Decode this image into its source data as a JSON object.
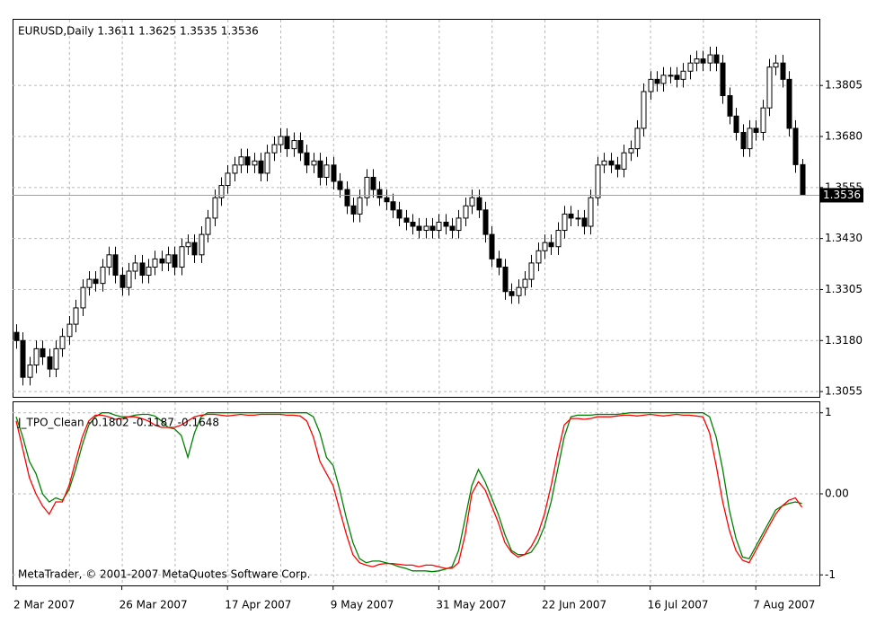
{
  "chart_data": [
    {
      "type": "candlestick",
      "title": "EURUSD,Daily  1.3611 1.3625 1.3535 1.3536",
      "categories": [
        "2 Mar 2007",
        null,
        null,
        null,
        null,
        null,
        null,
        null,
        null,
        null,
        null,
        null,
        null,
        null,
        null,
        null,
        "26 Mar 2007",
        null,
        null,
        null,
        null,
        null,
        null,
        null,
        null,
        null,
        null,
        null,
        null,
        null,
        null,
        null,
        "17 Apr 2007",
        null,
        null,
        null,
        null,
        null,
        null,
        null,
        null,
        null,
        null,
        null,
        null,
        null,
        null,
        null,
        "9 May 2007",
        null,
        null,
        null,
        null,
        null,
        null,
        null,
        null,
        null,
        null,
        null,
        null,
        null,
        null,
        null,
        "31 May 2007",
        null,
        null,
        null,
        null,
        null,
        null,
        null,
        null,
        null,
        null,
        null,
        null,
        null,
        null,
        null,
        "22 Jun 2007",
        null,
        null,
        null,
        null,
        null,
        null,
        null,
        null,
        null,
        null,
        null,
        null,
        null,
        null,
        null,
        "16 Jul 2007",
        null,
        null,
        null,
        null,
        null,
        null,
        null,
        null,
        null,
        null,
        null,
        null,
        null,
        null,
        null,
        "7 Aug 2007",
        null,
        null,
        null,
        null,
        null,
        null,
        null
      ],
      "open": [
        1.32,
        1.318,
        1.309,
        1.312,
        1.316,
        1.314,
        1.311,
        1.316,
        1.319,
        1.322,
        1.326,
        1.331,
        1.333,
        1.332,
        1.336,
        1.339,
        1.334,
        1.331,
        1.335,
        1.337,
        1.334,
        1.336,
        1.338,
        1.337,
        1.339,
        1.336,
        1.341,
        1.342,
        1.339,
        1.344,
        1.348,
        1.353,
        1.356,
        1.359,
        1.361,
        1.363,
        1.361,
        1.362,
        1.359,
        1.364,
        1.366,
        1.368,
        1.365,
        1.367,
        1.364,
        1.361,
        1.362,
        1.358,
        1.361,
        1.357,
        1.355,
        1.351,
        1.349,
        1.353,
        1.358,
        1.355,
        1.353,
        1.352,
        1.35,
        1.348,
        1.347,
        1.346,
        1.345,
        1.346,
        1.345,
        1.347,
        1.346,
        1.345,
        1.348,
        1.351,
        1.353,
        1.35,
        1.344,
        1.338,
        1.336,
        1.33,
        1.329,
        1.331,
        1.333,
        1.337,
        1.34,
        1.342,
        1.341,
        1.345,
        1.349,
        1.348,
        1.348,
        1.346,
        1.353,
        1.361,
        1.362,
        1.361,
        1.36,
        1.364,
        1.365,
        1.37,
        1.379,
        1.382,
        1.381,
        1.383,
        1.383,
        1.382,
        1.384,
        1.386,
        1.387,
        1.386,
        1.388,
        1.386,
        1.378,
        1.373,
        1.369,
        1.365,
        1.37,
        1.369,
        1.375,
        1.385,
        1.386,
        1.382,
        1.37,
        1.3611
      ],
      "high": [
        1.322,
        1.32,
        1.314,
        1.318,
        1.318,
        1.316,
        1.318,
        1.321,
        1.324,
        1.328,
        1.333,
        1.335,
        1.335,
        1.338,
        1.341,
        1.341,
        1.336,
        1.337,
        1.339,
        1.339,
        1.338,
        1.34,
        1.34,
        1.341,
        1.341,
        1.343,
        1.344,
        1.344,
        1.346,
        1.35,
        1.355,
        1.358,
        1.361,
        1.363,
        1.365,
        1.365,
        1.364,
        1.364,
        1.366,
        1.368,
        1.37,
        1.37,
        1.369,
        1.369,
        1.366,
        1.364,
        1.364,
        1.363,
        1.363,
        1.359,
        1.357,
        1.353,
        1.355,
        1.36,
        1.36,
        1.357,
        1.355,
        1.354,
        1.352,
        1.35,
        1.349,
        1.348,
        1.348,
        1.348,
        1.349,
        1.349,
        1.348,
        1.35,
        1.353,
        1.355,
        1.355,
        1.352,
        1.346,
        1.34,
        1.338,
        1.332,
        1.333,
        1.335,
        1.339,
        1.342,
        1.344,
        1.344,
        1.347,
        1.351,
        1.351,
        1.35,
        1.35,
        1.355,
        1.363,
        1.364,
        1.364,
        1.363,
        1.366,
        1.367,
        1.372,
        1.381,
        1.384,
        1.384,
        1.385,
        1.385,
        1.385,
        1.386,
        1.388,
        1.389,
        1.389,
        1.39,
        1.39,
        1.388,
        1.38,
        1.375,
        1.371,
        1.372,
        1.372,
        1.377,
        1.387,
        1.388,
        1.388,
        1.384,
        1.372,
        1.3625
      ],
      "low": [
        1.316,
        1.307,
        1.307,
        1.31,
        1.312,
        1.309,
        1.309,
        1.314,
        1.317,
        1.32,
        1.324,
        1.329,
        1.33,
        1.33,
        1.334,
        1.332,
        1.329,
        1.329,
        1.333,
        1.332,
        1.332,
        1.334,
        1.335,
        1.335,
        1.334,
        1.334,
        1.339,
        1.337,
        1.337,
        1.342,
        1.346,
        1.351,
        1.354,
        1.357,
        1.359,
        1.359,
        1.359,
        1.357,
        1.357,
        1.362,
        1.364,
        1.363,
        1.363,
        1.362,
        1.359,
        1.359,
        1.356,
        1.356,
        1.355,
        1.353,
        1.349,
        1.347,
        1.347,
        1.351,
        1.353,
        1.351,
        1.35,
        1.348,
        1.346,
        1.345,
        1.344,
        1.343,
        1.343,
        1.343,
        1.343,
        1.344,
        1.343,
        1.343,
        1.346,
        1.349,
        1.348,
        1.342,
        1.336,
        1.334,
        1.328,
        1.327,
        1.327,
        1.329,
        1.331,
        1.335,
        1.338,
        1.339,
        1.339,
        1.343,
        1.346,
        1.346,
        1.344,
        1.344,
        1.351,
        1.359,
        1.359,
        1.358,
        1.358,
        1.362,
        1.363,
        1.368,
        1.377,
        1.379,
        1.379,
        1.381,
        1.38,
        1.38,
        1.382,
        1.384,
        1.384,
        1.384,
        1.384,
        1.376,
        1.371,
        1.367,
        1.363,
        1.363,
        1.367,
        1.367,
        1.373,
        1.383,
        1.38,
        1.368,
        1.3591,
        1.3535
      ],
      "close": [
        1.318,
        1.309,
        1.312,
        1.316,
        1.314,
        1.311,
        1.316,
        1.319,
        1.322,
        1.326,
        1.331,
        1.333,
        1.332,
        1.336,
        1.339,
        1.334,
        1.331,
        1.335,
        1.337,
        1.334,
        1.336,
        1.338,
        1.337,
        1.339,
        1.336,
        1.341,
        1.342,
        1.339,
        1.344,
        1.348,
        1.353,
        1.356,
        1.359,
        1.361,
        1.363,
        1.361,
        1.362,
        1.359,
        1.364,
        1.366,
        1.368,
        1.365,
        1.367,
        1.364,
        1.361,
        1.362,
        1.358,
        1.361,
        1.357,
        1.355,
        1.351,
        1.349,
        1.353,
        1.358,
        1.355,
        1.353,
        1.352,
        1.35,
        1.348,
        1.347,
        1.346,
        1.345,
        1.346,
        1.345,
        1.347,
        1.346,
        1.345,
        1.348,
        1.351,
        1.353,
        1.35,
        1.344,
        1.338,
        1.336,
        1.33,
        1.329,
        1.331,
        1.333,
        1.337,
        1.34,
        1.342,
        1.341,
        1.345,
        1.349,
        1.348,
        1.348,
        1.346,
        1.353,
        1.361,
        1.362,
        1.361,
        1.36,
        1.364,
        1.365,
        1.37,
        1.379,
        1.382,
        1.381,
        1.383,
        1.383,
        1.382,
        1.384,
        1.386,
        1.387,
        1.386,
        1.388,
        1.386,
        1.378,
        1.373,
        1.369,
        1.365,
        1.37,
        1.369,
        1.375,
        1.385,
        1.386,
        1.382,
        1.37,
        1.3611,
        1.3536
      ],
      "up_color": "#ffffff",
      "down_color": "#000000",
      "ylim": [
        1.3042,
        1.3966
      ],
      "yticks": [
        1.3055,
        {
          "value": 1.318,
          "label": "1.3180"
        },
        1.3305,
        {
          "value": 1.343,
          "label": "1.3430"
        },
        1.3555,
        {
          "value": 1.368,
          "label": "1.3680"
        },
        1.3805
      ],
      "grid": true
    },
    {
      "type": "line",
      "title": "J_TPO_Clean -0.1802 -0.1187 -0.1648",
      "annotation": "MetaTrader, © 2001-2007 MetaQuotes Software Corp.",
      "series": [
        {
          "color": "#008000",
          "values": [
            0.95,
            0.7,
            0.4,
            0.25,
            0.0,
            -0.1,
            -0.05,
            -0.08,
            0.05,
            0.3,
            0.6,
            0.85,
            0.95,
            1.0,
            1.0,
            0.97,
            0.95,
            0.95,
            0.97,
            0.98,
            0.98,
            0.96,
            0.9,
            0.82,
            0.8,
            0.72,
            0.45,
            0.75,
            0.95,
            1.0,
            1,
            1,
            1,
            1,
            1,
            1,
            1,
            1,
            1,
            1,
            1,
            1,
            1,
            1,
            1.0,
            0.95,
            0.75,
            0.45,
            0.35,
            0.05,
            -0.3,
            -0.6,
            -0.8,
            -0.85,
            -0.83,
            -0.83,
            -0.85,
            -0.87,
            -0.9,
            -0.92,
            -0.95,
            -0.95,
            -0.95,
            -0.96,
            -0.95,
            -0.93,
            -0.9,
            -0.7,
            -0.3,
            0.1,
            0.3,
            0.15,
            -0.05,
            -0.25,
            -0.5,
            -0.7,
            -0.75,
            -0.75,
            -0.72,
            -0.6,
            -0.4,
            -0.1,
            0.3,
            0.7,
            0.95,
            0.97,
            0.97,
            0.97,
            0.98,
            0.98,
            0.98,
            0.98,
            0.99,
            1,
            1,
            1,
            1,
            1,
            1,
            1,
            1,
            1,
            1,
            1,
            1,
            0.95,
            0.7,
            0.3,
            -0.2,
            -0.55,
            -0.78,
            -0.8,
            -0.65,
            -0.5,
            -0.35,
            -0.2,
            -0.15,
            -0.12,
            -0.1,
            -0.1187
          ]
        },
        {
          "color": "#ff0000",
          "values": [
            0.9,
            0.55,
            0.2,
            0.0,
            -0.15,
            -0.25,
            -0.1,
            -0.1,
            0.1,
            0.4,
            0.7,
            0.9,
            0.97,
            0.97,
            0.95,
            0.92,
            0.93,
            0.95,
            0.95,
            0.93,
            0.9,
            0.85,
            0.82,
            0.82,
            0.82,
            0.85,
            0.9,
            0.95,
            0.97,
            0.98,
            0.98,
            0.97,
            0.96,
            0.97,
            0.98,
            0.97,
            0.97,
            0.98,
            0.98,
            0.98,
            0.98,
            0.97,
            0.97,
            0.96,
            0.9,
            0.7,
            0.4,
            0.25,
            0.1,
            -0.2,
            -0.5,
            -0.75,
            -0.85,
            -0.88,
            -0.9,
            -0.87,
            -0.86,
            -0.86,
            -0.87,
            -0.88,
            -0.88,
            -0.9,
            -0.88,
            -0.88,
            -0.9,
            -0.92,
            -0.92,
            -0.85,
            -0.5,
            0.0,
            0.15,
            0.05,
            -0.15,
            -0.35,
            -0.6,
            -0.72,
            -0.78,
            -0.75,
            -0.65,
            -0.5,
            -0.25,
            0.1,
            0.5,
            0.85,
            0.93,
            0.93,
            0.92,
            0.93,
            0.95,
            0.95,
            0.95,
            0.96,
            0.97,
            0.97,
            0.96,
            0.97,
            0.98,
            0.97,
            0.96,
            0.97,
            0.98,
            0.97,
            0.97,
            0.96,
            0.95,
            0.75,
            0.35,
            -0.1,
            -0.45,
            -0.7,
            -0.82,
            -0.85,
            -0.7,
            -0.55,
            -0.4,
            -0.25,
            -0.15,
            -0.08,
            -0.05,
            -0.1648
          ]
        }
      ],
      "ylim": [
        -1.13,
        1.13
      ],
      "yticks": [
        1,
        {
          "value": 0,
          "label": "0.00"
        },
        -1
      ],
      "grid": true
    }
  ]
}
